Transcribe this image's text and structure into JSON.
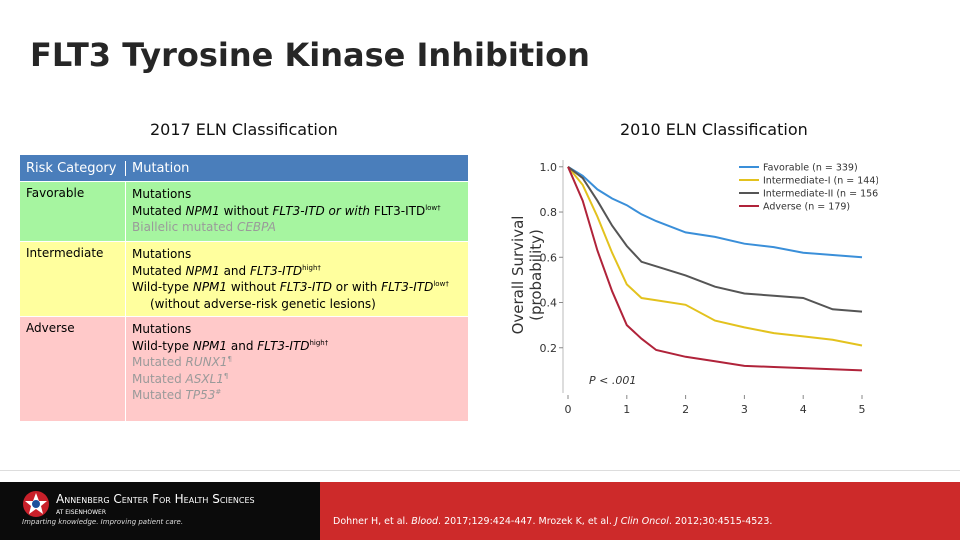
{
  "header": {
    "title": "FLT3 Tyrosine Kinase Inhibition"
  },
  "left_heading": "2017 ELN Classification",
  "right_heading": "2010 ELN Classification",
  "table": {
    "columns": [
      "Risk Category",
      "Mutation"
    ],
    "rows": [
      {
        "category": "Favorable",
        "lines": [
          [
            "Mutations"
          ],
          [
            "Mutated ",
            "NPM1",
            " without ",
            "FLT3-ITD or with",
            " FLT3-ITD",
            "low",
            "†"
          ],
          [
            "Biallelic mutated ",
            "CEBPA"
          ]
        ]
      },
      {
        "category": "Intermediate",
        "lines": [
          [
            "Mutations"
          ],
          [
            "Mutated ",
            "NPM1",
            " and ",
            "FLT3-ITD",
            "high",
            "†"
          ],
          [
            "Wild-type ",
            "NPM1",
            " without ",
            "FLT3-ITD",
            " or with ",
            "FLT3-ITD",
            "low",
            "†"
          ],
          [
            "(without adverse-risk genetic lesions)"
          ]
        ]
      },
      {
        "category": "Adverse",
        "lines": [
          [
            "Mutations"
          ],
          [
            "Wild-type ",
            "NPM1",
            " and ",
            "FLT3-ITD",
            "high",
            "†"
          ],
          [
            "Mutated ",
            "RUNX1",
            "¶"
          ],
          [
            "Mutated ",
            "ASXL1",
            "¶"
          ],
          [
            "Mutated ",
            "TP53",
            "#"
          ]
        ]
      }
    ]
  },
  "chart_data": {
    "type": "line",
    "y_label": [
      "Overall Survival",
      "(probability)"
    ],
    "annotation": "P < .001",
    "x": [
      0,
      0.25,
      0.5,
      0.75,
      1,
      1.25,
      1.5,
      2,
      2.5,
      3,
      3.5,
      4,
      4.5,
      5
    ],
    "xlim": [
      0,
      5
    ],
    "xticks": [
      0,
      1,
      2,
      3,
      4,
      5
    ],
    "ylim": [
      0,
      1.03
    ],
    "yticks": [
      {
        "value": 1.0,
        "label": "1.0"
      },
      0.8,
      0.6,
      0.4,
      0.2
    ],
    "legend": "upper right",
    "series": [
      {
        "name": "Favorable (n = 339)",
        "color": "#3a8fd9",
        "values": [
          1.0,
          0.96,
          0.9,
          0.86,
          0.83,
          0.79,
          0.76,
          0.71,
          0.69,
          0.66,
          0.645,
          0.62,
          0.61,
          0.6
        ]
      },
      {
        "name": "Intermediate-I (n = 144)",
        "color": "#e3c21e",
        "values": [
          1.0,
          0.92,
          0.78,
          0.62,
          0.48,
          0.42,
          0.41,
          0.39,
          0.32,
          0.29,
          0.265,
          0.25,
          0.235,
          0.21
        ]
      },
      {
        "name": "Intermediate-II (n = 156)",
        "color": "#555555",
        "values": [
          1.0,
          0.95,
          0.85,
          0.74,
          0.65,
          0.58,
          0.56,
          0.52,
          0.47,
          0.44,
          0.43,
          0.42,
          0.37,
          0.36
        ]
      },
      {
        "name": "Adverse (n = 179)",
        "color": "#b0233a",
        "values": [
          1.0,
          0.85,
          0.63,
          0.45,
          0.3,
          0.24,
          0.19,
          0.16,
          0.14,
          0.12,
          0.115,
          0.11,
          0.105,
          0.1
        ]
      }
    ]
  },
  "footer": {
    "logo_name": "Annenberg Center For Health Sciences",
    "logo_sub": "AT EISENHOWER",
    "logo_tagline": "Imparting knowledge. Improving patient care.",
    "citation": [
      "Dohner H, et al. ",
      "Blood",
      ". 2017;129:424-447. Mrozek K, et al. ",
      "J Clin Oncol",
      ". 2012;30:4515-4523."
    ]
  }
}
